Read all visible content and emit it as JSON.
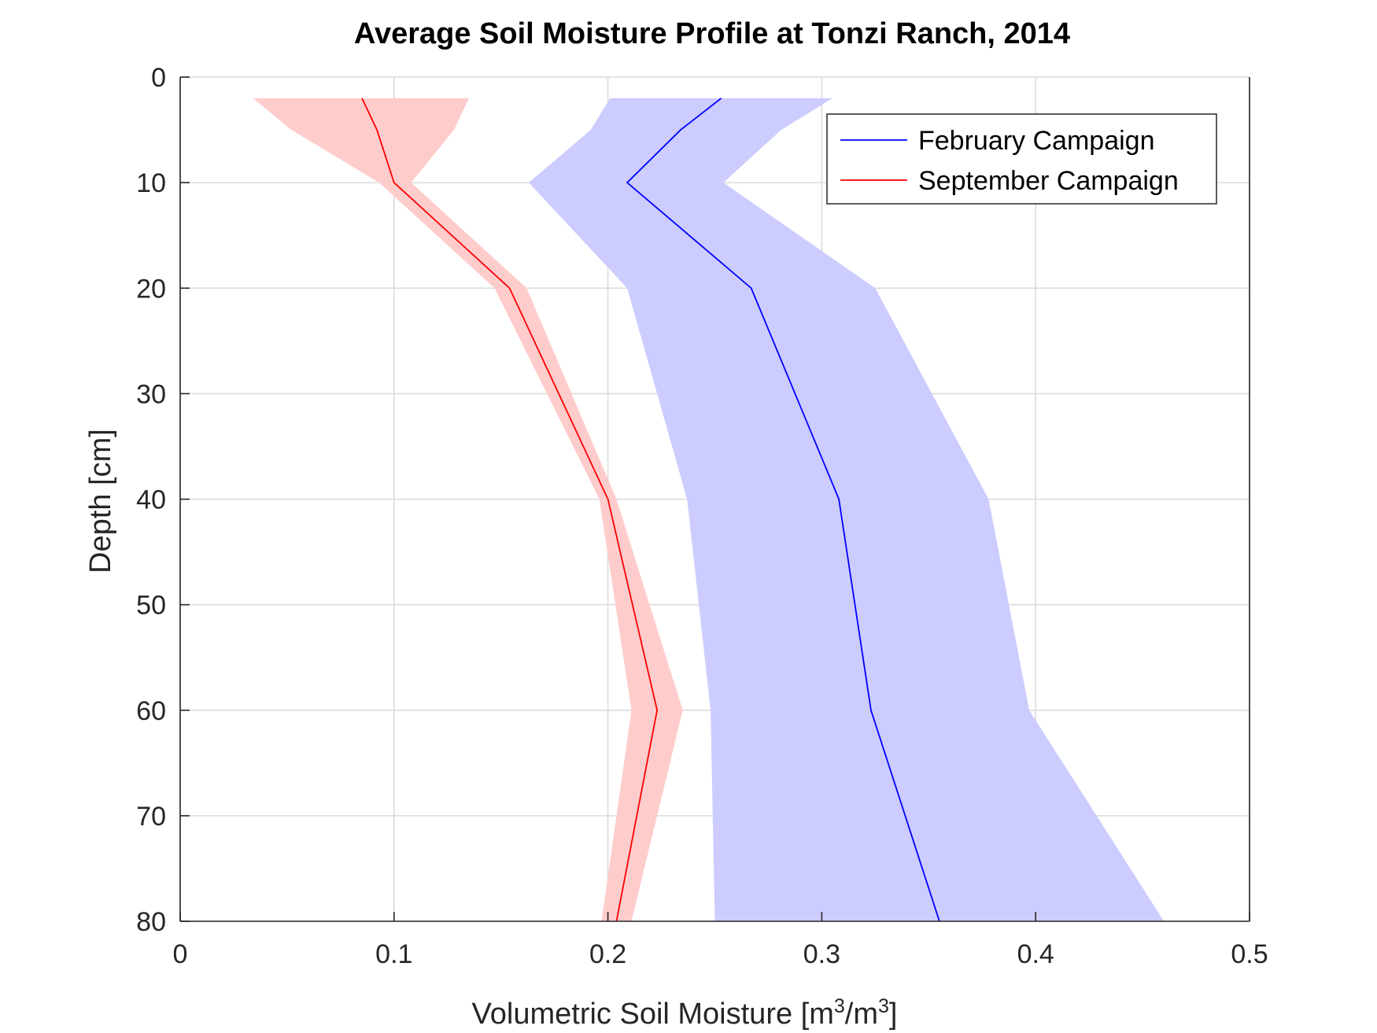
{
  "chart_data": {
    "type": "line",
    "title": "Average Soil Moisture Profile at Tonzi Ranch, 2014",
    "xlabel_main": "Volumetric Soil Moisture [m",
    "xlabel_sup1": "3",
    "xlabel_mid": "/m",
    "xlabel_sup2": "3",
    "xlabel_end": "]",
    "ylabel": "Depth [cm]",
    "xlim": [
      0,
      0.5
    ],
    "ylim": [
      0,
      80
    ],
    "y_reversed": true,
    "grid": true,
    "legend_position": "top-right",
    "x_ticks": [
      0,
      0.1,
      0.2,
      0.3,
      0.4,
      0.5
    ],
    "x_tick_labels": [
      "0",
      "0.1",
      "0.2",
      "0.3",
      "0.4",
      "0.5"
    ],
    "y_ticks": [
      0,
      10,
      20,
      30,
      40,
      50,
      60,
      70,
      80
    ],
    "y_tick_labels": [
      "0",
      "10",
      "20",
      "30",
      "40",
      "50",
      "60",
      "70",
      "80"
    ],
    "series": [
      {
        "name": "February Campaign",
        "color": "#0000ff",
        "band_color": "#ccccff",
        "depth": [
          2,
          5,
          10,
          20,
          40,
          60,
          80
        ],
        "mean": [
          0.253,
          0.234,
          0.209,
          0.267,
          0.308,
          0.323,
          0.355
        ],
        "lower": [
          0.201,
          0.192,
          0.163,
          0.209,
          0.237,
          0.248,
          0.25
        ],
        "upper": [
          0.305,
          0.281,
          0.254,
          0.325,
          0.378,
          0.397,
          0.46
        ]
      },
      {
        "name": "September Campaign",
        "color": "#ff0000",
        "band_color": "#ffcccc",
        "depth": [
          2,
          5,
          10,
          20,
          40,
          60,
          80
        ],
        "mean": [
          0.085,
          0.092,
          0.1,
          0.154,
          0.2,
          0.223,
          0.204
        ],
        "lower": [
          0.034,
          0.052,
          0.093,
          0.147,
          0.196,
          0.211,
          0.197
        ],
        "upper": [
          0.135,
          0.128,
          0.108,
          0.162,
          0.204,
          0.235,
          0.211
        ]
      }
    ]
  }
}
